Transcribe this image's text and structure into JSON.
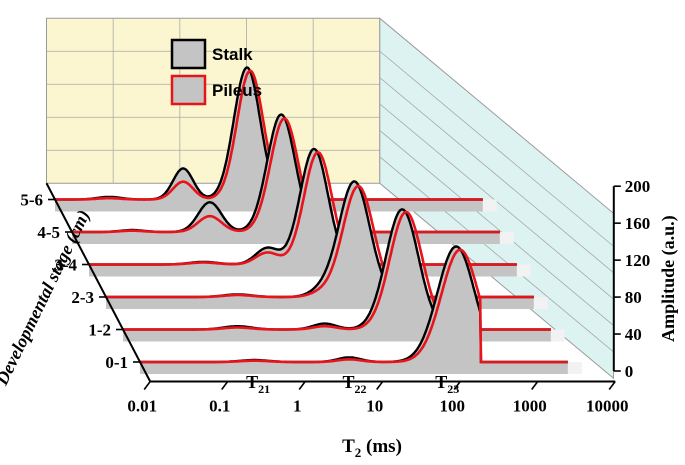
{
  "chart_data": {
    "type": "area",
    "title": "",
    "xlabel": "T",
    "xlabel_sub": "2",
    "xlabel_unit": " (ms)",
    "x_scale": "log",
    "xlim": [
      0.01,
      10000
    ],
    "x_ticks": [
      "0.01",
      "0.1",
      "1",
      "10",
      "100",
      "1000",
      "10000"
    ],
    "zlabel": "Amplitude (a.u.)",
    "zlim": [
      0,
      200
    ],
    "z_ticks": [
      "0",
      "40",
      "80",
      "120",
      "160",
      "200"
    ],
    "ylabel": "Developmental stage (cm)",
    "stages": [
      "0-1",
      "1-2",
      "2-3",
      "3-4",
      "4-5",
      "5-6"
    ],
    "peak_labels": [
      {
        "main": "T",
        "sub": "21"
      },
      {
        "main": "T",
        "sub": "22"
      },
      {
        "main": "T",
        "sub": "23"
      }
    ],
    "legend": {
      "placement": "top-left",
      "entries": [
        "Stalk",
        "Pileus"
      ]
    },
    "colors": {
      "stalk": "#000000",
      "pileus": "#e8141c",
      "fill": "#c4c4c4",
      "back_wall": "#fbf6cf",
      "side_wall": "#dcf3f2",
      "floor": "#f2f2f2",
      "grid": "#a8a8a8"
    },
    "series": [
      {
        "stage": "0-1",
        "stalk": {
          "peaks": [
            [
              0.3,
              3,
              0.18
            ],
            [
              5,
              7,
              0.15
            ],
            [
              120,
              175,
              0.24
            ]
          ],
          "range": [
            0.08,
            250
          ]
        },
        "pileus": {
          "peaks": [
            [
              0.3,
              2,
              0.18
            ],
            [
              5,
              4,
              0.15
            ],
            [
              135,
              170,
              0.24
            ]
          ],
          "range": [
            0.08,
            250
          ]
        }
      },
      {
        "stage": "1-2",
        "stalk": {
          "peaks": [
            [
              0.3,
              5,
              0.18
            ],
            [
              4,
              9,
              0.15
            ],
            [
              40,
              182,
              0.21
            ]
          ],
          "range": [
            0.08,
            120
          ]
        },
        "pileus": {
          "peaks": [
            [
              0.3,
              3,
              0.18
            ],
            [
              4,
              5,
              0.15
            ],
            [
              45,
              178,
              0.21
            ]
          ],
          "range": [
            0.08,
            120
          ]
        }
      },
      {
        "stage": "2-3",
        "stalk": {
          "peaks": [
            [
              0.5,
              4,
              0.18
            ],
            [
              6,
              9,
              0.15
            ],
            [
              16,
              175,
              0.2
            ]
          ],
          "range": [
            0.08,
            100
          ]
        },
        "pileus": {
          "peaks": [
            [
              0.5,
              3,
              0.18
            ],
            [
              6,
              6,
              0.15
            ],
            [
              18,
              168,
              0.2
            ]
          ],
          "range": [
            0.08,
            100
          ]
        }
      },
      {
        "stage": "3-4",
        "stalk": {
          "peaks": [
            [
              0.3,
              4,
              0.18
            ],
            [
              2,
              25,
              0.15
            ],
            [
              8,
              175,
              0.18
            ]
          ],
          "range": [
            0.08,
            60
          ]
        },
        "pileus": {
          "peaks": [
            [
              0.3,
              3,
              0.18
            ],
            [
              2,
              18,
              0.15
            ],
            [
              9,
              170,
              0.18
            ]
          ],
          "range": [
            0.08,
            60
          ]
        }
      },
      {
        "stage": "4-5",
        "stalk": {
          "peaks": [
            [
              0.06,
              3,
              0.15
            ],
            [
              0.6,
              45,
              0.15
            ],
            [
              5,
              178,
              0.18
            ]
          ],
          "range": [
            0.015,
            30
          ]
        },
        "pileus": {
          "peaks": [
            [
              0.06,
              2,
              0.15
            ],
            [
              0.6,
              24,
              0.15
            ],
            [
              5.5,
              172,
              0.18
            ]
          ],
          "range": [
            0.015,
            30
          ]
        }
      },
      {
        "stage": "5-6",
        "stalk": {
          "peaks": [
            [
              0.05,
              4,
              0.15
            ],
            [
              0.45,
              47,
              0.13
            ],
            [
              3,
              200,
              0.17
            ]
          ],
          "range": [
            0.012,
            20
          ]
        },
        "pileus": {
          "peaks": [
            [
              0.05,
              2,
              0.15
            ],
            [
              0.45,
              27,
              0.13
            ],
            [
              3.3,
              195,
              0.17
            ]
          ],
          "range": [
            0.012,
            20
          ]
        }
      }
    ]
  }
}
